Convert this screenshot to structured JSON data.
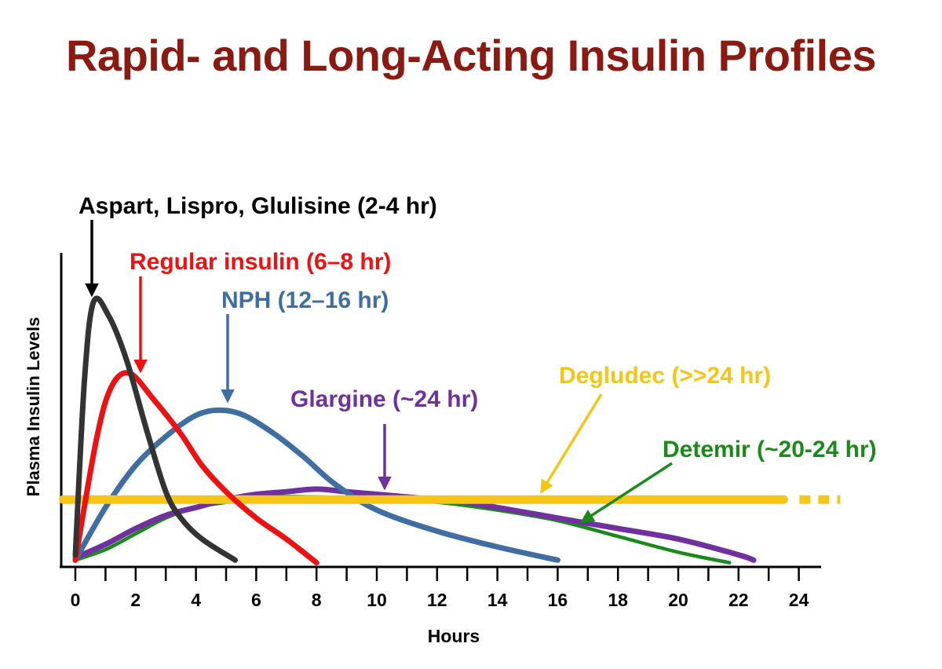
{
  "title": "Rapid- and Long-Acting Insulin Profiles",
  "colors": {
    "title": "#8b1a12",
    "axis": "#000000",
    "rapid": "#333333",
    "rapid_label": "#000000",
    "regular": "#ee1111",
    "nph": "#3f6fa2",
    "glargine": "#7030a0",
    "degludec": "#f5c518",
    "detemir": "#1a8a1a"
  },
  "chart_data": {
    "type": "line",
    "title": "Rapid- and Long-Acting Insulin Profiles",
    "xlabel": "Hours",
    "ylabel": "Plasma Insulin Levels",
    "xlim": [
      0,
      24
    ],
    "ylim": [
      0,
      100
    ],
    "xticks": [
      0,
      2,
      4,
      6,
      8,
      10,
      12,
      14,
      16,
      18,
      20,
      22,
      24
    ],
    "grid": false,
    "series": [
      {
        "key": "rapid",
        "name": "Aspart, Lispro, Glulisine (2-4 hr)",
        "color": "#333333",
        "x": [
          0,
          0.3,
          0.6,
          1.1,
          1.7,
          2.4,
          3.0,
          3.5,
          4.2,
          5.3
        ],
        "y": [
          4,
          70,
          100,
          95,
          78,
          50,
          28,
          18,
          10,
          2
        ]
      },
      {
        "key": "regular",
        "name": "Regular insulin (6–8 hr)",
        "color": "#ee1111",
        "x": [
          0,
          0.7,
          1.2,
          1.8,
          2.6,
          3.5,
          4.2,
          5.0,
          6.0,
          7.0,
          8.0
        ],
        "y": [
          2,
          48,
          68,
          73,
          63,
          50,
          38,
          28,
          18,
          10,
          1
        ]
      },
      {
        "key": "nph",
        "name": "NPH (12–16 hr)",
        "color": "#3f6fa2",
        "x": [
          0,
          1.0,
          2.0,
          3.0,
          4.0,
          4.8,
          5.6,
          6.6,
          7.6,
          8.6,
          10.0,
          12.0,
          14.0,
          16.0
        ],
        "y": [
          2,
          22,
          38,
          49,
          57,
          59,
          57,
          50,
          41,
          31,
          21,
          13,
          7,
          2
        ]
      },
      {
        "key": "glargine",
        "name": "Glargine (~24 hr)",
        "color": "#7030a0",
        "x": [
          0,
          1.0,
          2.0,
          3.0,
          4.0,
          5.0,
          6.0,
          7.0,
          8.0,
          9.0,
          10.0,
          11.0,
          12.0,
          13.0,
          14.0,
          16.0,
          18.0,
          20.0,
          22.0,
          22.5
        ],
        "y": [
          3,
          8,
          14,
          19,
          22,
          25,
          27,
          28,
          29,
          28,
          27,
          26,
          25,
          24,
          22,
          18,
          14,
          10,
          4,
          2
        ]
      },
      {
        "key": "detemir",
        "name": "Detemir (~20-24 hr)",
        "color": "#1a8a1a",
        "x": [
          0,
          1.0,
          2.0,
          3.0,
          4.0,
          5.0,
          6.0,
          8.0,
          10.0,
          12.0,
          14.0,
          16.0,
          18.0,
          20.0,
          21.7
        ],
        "y": [
          2,
          6,
          12,
          18,
          22,
          24,
          26,
          26,
          25,
          24,
          21,
          17,
          11,
          5,
          1
        ]
      },
      {
        "key": "degludec",
        "name": "Degludec (>>24 hr)",
        "color": "#f5c518",
        "x": [
          -0.4,
          23.5
        ],
        "y": [
          25,
          25
        ],
        "continues_beyond_axis": true
      }
    ],
    "annotations": [
      {
        "key": "rapid",
        "text": "Aspart, Lispro, Glulisine (2-4 hr)",
        "points_to": {
          "x": 0.6,
          "y": 100
        }
      },
      {
        "key": "regular",
        "text": "Regular insulin (6–8 hr)",
        "points_to": {
          "x": 2.0,
          "y": 73
        }
      },
      {
        "key": "nph",
        "text": "NPH (12–16 hr)",
        "points_to": {
          "x": 4.8,
          "y": 59
        }
      },
      {
        "key": "glargine",
        "text": "Glargine (~24 hr)",
        "points_to": {
          "x": 10.0,
          "y": 28
        }
      },
      {
        "key": "degludec",
        "text": "Degludec (>>24 hr)",
        "points_to": {
          "x": 15.0,
          "y": 27
        }
      },
      {
        "key": "detemir",
        "text": "Detemir (~20-24 hr)",
        "points_to": {
          "x": 16.3,
          "y": 17
        }
      }
    ]
  }
}
